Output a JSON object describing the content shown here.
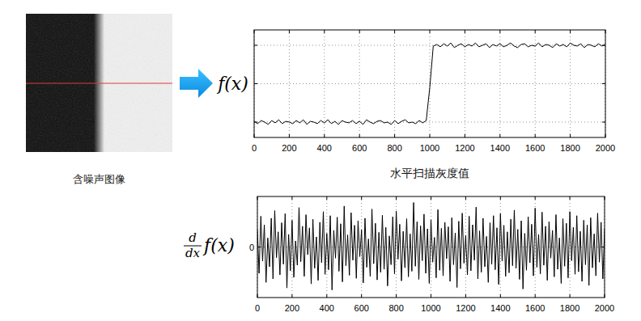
{
  "image": {
    "caption": "含噪声图像"
  },
  "chart_data": [
    {
      "type": "line",
      "y_label": "f(x)",
      "x_label": "水平扫描灰度值",
      "color": "#000000",
      "grid": true,
      "tick_labels": "x",
      "xlim": [
        0,
        2000
      ],
      "xticks": [
        0,
        200,
        400,
        600,
        800,
        1000,
        1200,
        1400,
        1600,
        1800,
        2000
      ],
      "ylim": [
        -0.2,
        1.2
      ],
      "yticks": [
        0,
        0.5,
        1
      ],
      "x": [
        0,
        20,
        40,
        60,
        80,
        100,
        120,
        140,
        160,
        180,
        200,
        220,
        240,
        260,
        280,
        300,
        320,
        340,
        360,
        380,
        400,
        420,
        440,
        460,
        480,
        500,
        520,
        540,
        560,
        580,
        600,
        620,
        640,
        660,
        680,
        700,
        720,
        740,
        760,
        780,
        800,
        820,
        840,
        860,
        880,
        900,
        920,
        940,
        960,
        980,
        1000,
        1020,
        1040,
        1060,
        1080,
        1100,
        1120,
        1140,
        1160,
        1180,
        1200,
        1220,
        1240,
        1260,
        1280,
        1300,
        1320,
        1340,
        1360,
        1380,
        1400,
        1420,
        1440,
        1460,
        1480,
        1500,
        1520,
        1540,
        1560,
        1580,
        1600,
        1620,
        1640,
        1660,
        1680,
        1700,
        1720,
        1740,
        1760,
        1780,
        1800,
        1820,
        1840,
        1860,
        1880,
        1900,
        1920,
        1940,
        1960,
        1980,
        2000
      ],
      "values": [
        0.01,
        -0.02,
        0.02,
        0.0,
        -0.03,
        0.02,
        -0.01,
        0.03,
        -0.02,
        0.01,
        0.0,
        -0.02,
        0.02,
        -0.01,
        0.03,
        -0.03,
        0.01,
        0.0,
        -0.02,
        0.02,
        -0.01,
        0.03,
        -0.02,
        0.01,
        -0.03,
        0.02,
        0.0,
        -0.01,
        0.02,
        -0.02,
        0.01,
        -0.03,
        0.03,
        0.0,
        -0.02,
        0.01,
        0.02,
        -0.01,
        0.0,
        -0.03,
        0.02,
        -0.02,
        0.01,
        0.03,
        -0.01,
        0.0,
        -0.02,
        0.02,
        -0.01,
        0.02,
        0.45,
        0.99,
        1.01,
        0.98,
        1.02,
        0.99,
        1.03,
        0.97,
        1.0,
        1.02,
        0.98,
        1.01,
        0.99,
        1.03,
        0.98,
        1.0,
        1.02,
        0.97,
        1.01,
        0.99,
        1.02,
        0.98,
        1.0,
        1.03,
        0.99,
        0.97,
        1.01,
        1.02,
        0.98,
        1.0,
        0.99,
        1.03,
        0.98,
        1.01,
        1.0,
        0.97,
        1.02,
        0.99,
        1.01,
        0.98,
        1.03,
        1.0,
        0.99,
        1.02,
        0.97,
        1.01,
        1.0,
        0.98,
        1.02,
        0.99,
        1.01
      ]
    },
    {
      "type": "line",
      "y_label": {
        "numerator": "d",
        "denominator": "dx",
        "text": "f(x)"
      },
      "color": "#000000",
      "grid": true,
      "xlim": [
        0,
        2000
      ],
      "xticks": [
        0,
        200,
        400,
        600,
        800,
        1000,
        1200,
        1400,
        1600,
        1800,
        2000
      ],
      "ylim": [
        -1,
        1
      ],
      "yticks": [
        0
      ],
      "x": [
        0,
        10,
        20,
        30,
        40,
        50,
        60,
        70,
        80,
        90,
        100,
        110,
        120,
        130,
        140,
        150,
        160,
        170,
        180,
        190,
        200,
        210,
        220,
        230,
        240,
        250,
        260,
        270,
        280,
        290,
        300,
        310,
        320,
        330,
        340,
        350,
        360,
        370,
        380,
        390,
        400,
        410,
        420,
        430,
        440,
        450,
        460,
        470,
        480,
        490,
        500,
        510,
        520,
        530,
        540,
        550,
        560,
        570,
        580,
        590,
        600,
        610,
        620,
        630,
        640,
        650,
        660,
        670,
        680,
        690,
        700,
        710,
        720,
        730,
        740,
        750,
        760,
        770,
        780,
        790,
        800,
        810,
        820,
        830,
        840,
        850,
        860,
        870,
        880,
        890,
        900,
        910,
        920,
        930,
        940,
        950,
        960,
        970,
        980,
        990,
        1000,
        1010,
        1020,
        1030,
        1040,
        1050,
        1060,
        1070,
        1080,
        1090,
        1100,
        1110,
        1120,
        1130,
        1140,
        1150,
        1160,
        1170,
        1180,
        1190,
        1200,
        1210,
        1220,
        1230,
        1240,
        1250,
        1260,
        1270,
        1280,
        1290,
        1300,
        1310,
        1320,
        1330,
        1340,
        1350,
        1360,
        1370,
        1380,
        1390,
        1400,
        1410,
        1420,
        1430,
        1440,
        1450,
        1460,
        1470,
        1480,
        1490,
        1500,
        1510,
        1520,
        1530,
        1540,
        1550,
        1560,
        1570,
        1580,
        1590,
        1600,
        1610,
        1620,
        1630,
        1640,
        1650,
        1660,
        1670,
        1680,
        1690,
        1700,
        1710,
        1720,
        1730,
        1740,
        1750,
        1760,
        1770,
        1780,
        1790,
        1800,
        1810,
        1820,
        1830,
        1840,
        1850,
        1860,
        1870,
        1880,
        1890,
        1900,
        1910,
        1920,
        1930,
        1940,
        1950,
        1960,
        1970,
        1980,
        1990,
        2000
      ],
      "values": [
        0.35,
        -0.52,
        0.61,
        -0.28,
        0.44,
        -0.7,
        0.18,
        -0.39,
        0.57,
        -0.63,
        0.72,
        -0.21,
        0.3,
        -0.55,
        0.48,
        -0.34,
        0.66,
        -0.81,
        0.25,
        -0.47,
        0.53,
        -0.6,
        0.12,
        -0.36,
        0.78,
        -0.29,
        0.41,
        -0.58,
        0.64,
        -0.15,
        0.38,
        -0.73,
        0.55,
        -0.42,
        0.2,
        -0.66,
        0.49,
        -0.31,
        0.7,
        -0.54,
        0.27,
        -0.45,
        0.62,
        -0.85,
        0.33,
        -0.22,
        0.59,
        -0.48,
        0.46,
        -0.69,
        0.81,
        -0.37,
        0.24,
        -0.56,
        0.68,
        -0.26,
        0.43,
        -0.62,
        0.52,
        -0.19,
        0.34,
        -0.71,
        0.57,
        -0.4,
        0.16,
        -0.58,
        0.75,
        -0.33,
        0.47,
        -0.65,
        0.29,
        -0.5,
        0.63,
        -0.44,
        0.39,
        -0.77,
        0.22,
        -0.35,
        0.6,
        -0.53,
        0.71,
        -0.24,
        0.45,
        -0.67,
        0.31,
        -0.41,
        0.56,
        -0.59,
        0.26,
        -0.48,
        0.88,
        -0.38,
        0.5,
        -0.64,
        0.42,
        -0.27,
        0.65,
        -0.52,
        0.36,
        -0.72,
        0.54,
        -0.3,
        0.19,
        -0.61,
        0.74,
        -0.46,
        0.37,
        -0.57,
        0.49,
        -0.23,
        0.4,
        -0.68,
        0.58,
        -0.35,
        0.28,
        -0.8,
        0.51,
        -0.43,
        0.67,
        -0.32,
        0.23,
        -0.55,
        0.61,
        -0.47,
        0.44,
        -0.26,
        0.79,
        -0.63,
        0.32,
        -0.5,
        0.57,
        -0.39,
        0.21,
        -0.7,
        0.48,
        -0.34,
        0.62,
        -0.45,
        0.38,
        -0.74,
        0.66,
        -0.28,
        0.43,
        -0.58,
        0.3,
        -0.51,
        0.55,
        -0.37,
        0.73,
        -0.42,
        0.35,
        -0.64,
        0.52,
        -0.83,
        0.27,
        -0.46,
        0.6,
        -0.31,
        0.45,
        -0.57,
        0.77,
        -0.4,
        0.25,
        -0.53,
        0.69,
        -0.36,
        0.41,
        -0.66,
        0.5,
        -0.22,
        0.33,
        -0.59,
        0.64,
        -0.44,
        0.18,
        -0.72,
        0.56,
        -0.38,
        0.47,
        -0.61,
        0.7,
        -0.27,
        0.39,
        -0.54,
        0.62,
        -0.49,
        0.31,
        -0.68,
        0.53,
        -0.35,
        0.44,
        -0.76,
        0.58,
        -0.41,
        0.26,
        -0.57,
        0.67,
        -0.3,
        0.49,
        -0.63,
        0.37
      ]
    }
  ]
}
